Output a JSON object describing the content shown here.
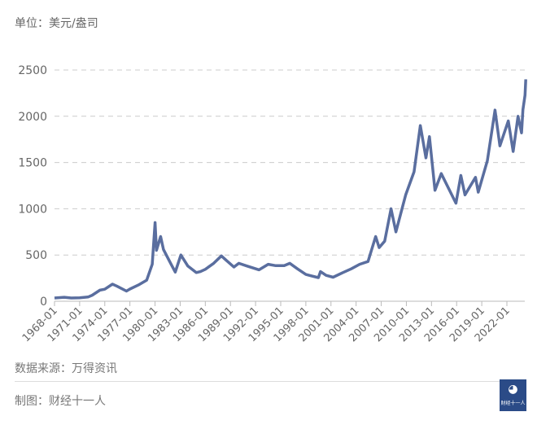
{
  "unit_label": "单位：美元/盎司",
  "source": "数据来源：万得资讯",
  "maker": "制图：财经十一人",
  "logo_text": "财经十一人",
  "colors": {
    "line": "#5a6e9f",
    "grid": "#cccccc",
    "text": "#666666",
    "logo": "#2b4b87"
  },
  "chart_data": {
    "type": "line",
    "title": "",
    "xlabel": "",
    "ylabel": "",
    "ylim": [
      0,
      2500
    ],
    "yticks": [
      0,
      500,
      1000,
      1500,
      2000,
      2500
    ],
    "xticks": [
      "1968-01",
      "1971-01",
      "1974-01",
      "1977-01",
      "1980-01",
      "1983-01",
      "1986-01",
      "1989-01",
      "1992-01",
      "1995-01",
      "1998-01",
      "2001-01",
      "2004-01",
      "2007-01",
      "2010-01",
      "2013-01",
      "2016-01",
      "2019-01",
      "2022-01"
    ],
    "grid": "horizontal dashed",
    "series": [
      {
        "points": [
          [
            "1968-01",
            35
          ],
          [
            "1969-03",
            43
          ],
          [
            "1970-01",
            35
          ],
          [
            "1971-01",
            38
          ],
          [
            "1972-01",
            46
          ],
          [
            "1972-07",
            65
          ],
          [
            "1973-06",
            120
          ],
          [
            "1974-01",
            130
          ],
          [
            "1974-12",
            185
          ],
          [
            "1975-06",
            165
          ],
          [
            "1976-08",
            110
          ],
          [
            "1977-01",
            132
          ],
          [
            "1978-01",
            175
          ],
          [
            "1979-01",
            228
          ],
          [
            "1979-09",
            400
          ],
          [
            "1980-01",
            850
          ],
          [
            "1980-03",
            550
          ],
          [
            "1980-09",
            700
          ],
          [
            "1981-01",
            560
          ],
          [
            "1981-12",
            400
          ],
          [
            "1982-06",
            315
          ],
          [
            "1983-02",
            500
          ],
          [
            "1983-12",
            380
          ],
          [
            "1984-12",
            310
          ],
          [
            "1985-06",
            320
          ],
          [
            "1986-01",
            345
          ],
          [
            "1987-01",
            410
          ],
          [
            "1987-12",
            490
          ],
          [
            "1988-06",
            450
          ],
          [
            "1989-06",
            370
          ],
          [
            "1990-01",
            410
          ],
          [
            "1991-01",
            380
          ],
          [
            "1992-06",
            340
          ],
          [
            "1993-07",
            400
          ],
          [
            "1994-06",
            385
          ],
          [
            "1995-06",
            385
          ],
          [
            "1996-02",
            410
          ],
          [
            "1997-01",
            350
          ],
          [
            "1998-01",
            290
          ],
          [
            "1999-07",
            255
          ],
          [
            "1999-10",
            320
          ],
          [
            "2000-06",
            280
          ],
          [
            "2001-04",
            260
          ],
          [
            "2002-06",
            310
          ],
          [
            "2003-06",
            350
          ],
          [
            "2004-06",
            400
          ],
          [
            "2005-06",
            430
          ],
          [
            "2006-05",
            700
          ],
          [
            "2006-10",
            580
          ],
          [
            "2007-06",
            650
          ],
          [
            "2008-03",
            1000
          ],
          [
            "2008-10",
            750
          ],
          [
            "2009-12",
            1150
          ],
          [
            "2010-12",
            1400
          ],
          [
            "2011-09",
            1900
          ],
          [
            "2012-05",
            1550
          ],
          [
            "2012-10",
            1780
          ],
          [
            "2013-06",
            1200
          ],
          [
            "2014-03",
            1380
          ],
          [
            "2015-12",
            1060
          ],
          [
            "2016-07",
            1360
          ],
          [
            "2017-01",
            1150
          ],
          [
            "2018-04",
            1340
          ],
          [
            "2018-08",
            1180
          ],
          [
            "2019-09",
            1520
          ],
          [
            "2020-08",
            2067
          ],
          [
            "2021-03",
            1680
          ],
          [
            "2022-03",
            1950
          ],
          [
            "2022-10",
            1620
          ],
          [
            "2023-05",
            2000
          ],
          [
            "2023-10",
            1820
          ],
          [
            "2023-12",
            2070
          ],
          [
            "2024-03",
            2230
          ],
          [
            "2024-04",
            2400
          ]
        ]
      }
    ]
  }
}
